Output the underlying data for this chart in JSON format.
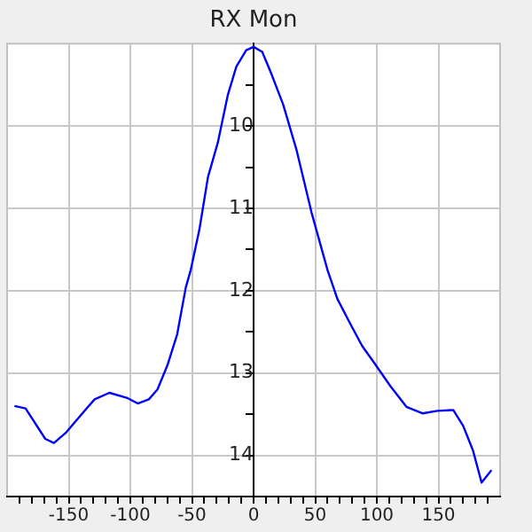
{
  "chart_data": {
    "type": "line",
    "title": "RX Mon",
    "grid": true,
    "marker": "none",
    "line_style": "solid",
    "xlim": [
      -200,
      200
    ],
    "ylim": [
      14.5,
      9
    ],
    "xticks": [
      {
        "value": -190,
        "label": null
      },
      {
        "value": -180,
        "label": null
      },
      {
        "value": -170,
        "label": null
      },
      {
        "value": -160,
        "label": null
      },
      -150,
      {
        "value": -140,
        "label": null
      },
      {
        "value": -130,
        "label": null
      },
      {
        "value": -120,
        "label": null
      },
      {
        "value": -110,
        "label": null
      },
      -100,
      {
        "value": -90,
        "label": null
      },
      {
        "value": -80,
        "label": null
      },
      {
        "value": -70,
        "label": null
      },
      {
        "value": -60,
        "label": null
      },
      -50,
      {
        "value": -40,
        "label": null
      },
      {
        "value": -30,
        "label": null
      },
      {
        "value": -20,
        "label": null
      },
      {
        "value": -10,
        "label": null
      },
      0,
      {
        "value": 10,
        "label": null
      },
      {
        "value": 20,
        "label": null
      },
      {
        "value": 30,
        "label": null
      },
      {
        "value": 40,
        "label": null
      },
      50,
      {
        "value": 60,
        "label": null
      },
      {
        "value": 70,
        "label": null
      },
      {
        "value": 80,
        "label": null
      },
      {
        "value": 90,
        "label": null
      },
      100,
      {
        "value": 110,
        "label": null
      },
      {
        "value": 120,
        "label": null
      },
      {
        "value": 130,
        "label": null
      },
      {
        "value": 140,
        "label": null
      },
      150,
      {
        "value": 160,
        "label": null
      },
      {
        "value": 170,
        "label": null
      },
      {
        "value": 180,
        "label": null
      },
      {
        "value": 190,
        "label": null
      }
    ],
    "yticks": [
      {
        "value": 9.5,
        "label": null
      },
      10,
      {
        "value": 10.5,
        "label": null
      },
      11,
      {
        "value": 11.5,
        "label": null
      },
      12,
      {
        "value": 12.5,
        "label": null
      },
      13,
      {
        "value": 13.5,
        "label": null
      },
      14
    ],
    "series": [
      {
        "color": "#0000ff",
        "x": [
          -194,
          -185,
          -169,
          -162,
          -152,
          -136,
          -129,
          -117,
          -103,
          -94,
          -85,
          -78,
          -70,
          -62,
          -55,
          -51,
          -44,
          -37,
          -29,
          -21,
          -14,
          -6,
          0,
          7,
          14,
          24,
          35,
          47,
          60,
          68,
          78,
          88,
          98,
          111,
          124,
          137,
          149,
          162,
          170,
          178,
          185,
          193
        ],
        "values": [
          13.4,
          13.43,
          13.8,
          13.85,
          13.72,
          13.44,
          13.32,
          13.24,
          13.3,
          13.37,
          13.32,
          13.2,
          12.91,
          12.53,
          11.96,
          11.75,
          11.26,
          10.62,
          10.2,
          9.63,
          9.28,
          9.08,
          9.04,
          9.1,
          9.35,
          9.74,
          10.3,
          11.05,
          11.75,
          12.1,
          12.39,
          12.67,
          12.88,
          13.16,
          13.41,
          13.49,
          13.46,
          13.45,
          13.64,
          13.94,
          14.33,
          14.18
        ]
      }
    ]
  }
}
